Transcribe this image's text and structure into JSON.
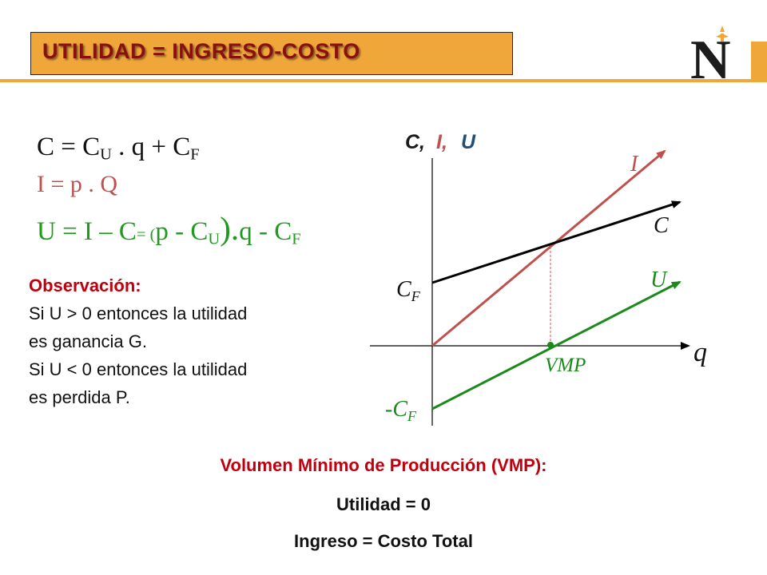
{
  "header": {
    "title": "UTILIDAD = INGRESO-COSTO",
    "logo_letter": "N"
  },
  "formulas": {
    "cost": {
      "lhs": "C = C",
      "sub_u": "U",
      "mid": " . q + C",
      "sub_f": "F"
    },
    "income": {
      "text": "I = p . Q"
    },
    "utility": {
      "lhs": "U = I – C",
      "eq": "= (",
      "p_minus": "p - C",
      "sub_u": "U",
      "close": ").",
      "q_minus": "q - C",
      "sub_f": "F"
    }
  },
  "observation": {
    "title": "Observación:",
    "line1": "Si U > 0 entonces la utilidad",
    "line2": "es ganancia G.",
    "line3": "Si U < 0 entonces la utilidad",
    "line4": "es perdida P."
  },
  "diagram": {
    "axis_y_label_c": "C,",
    "axis_y_label_i": "I,",
    "axis_y_label_u": "U",
    "axis_x_label": "q",
    "line_i_label": "I",
    "line_c_label": "C",
    "line_u_label": "U",
    "cf_label": "C",
    "cf_sub": "F",
    "neg_cf_label": "-C",
    "neg_cf_sub": "F",
    "vmp_label": "VMP",
    "colors": {
      "income": "#c0504d",
      "cost": "#000000",
      "utility": "#1a8a1a",
      "utility_label": "#1f4e79",
      "vmp": "#1a8a1a"
    }
  },
  "footer": {
    "line1": "Volumen Mínimo de Producción (VMP):",
    "line2": "Utilidad = 0",
    "line3": "Ingreso = Costo Total"
  }
}
